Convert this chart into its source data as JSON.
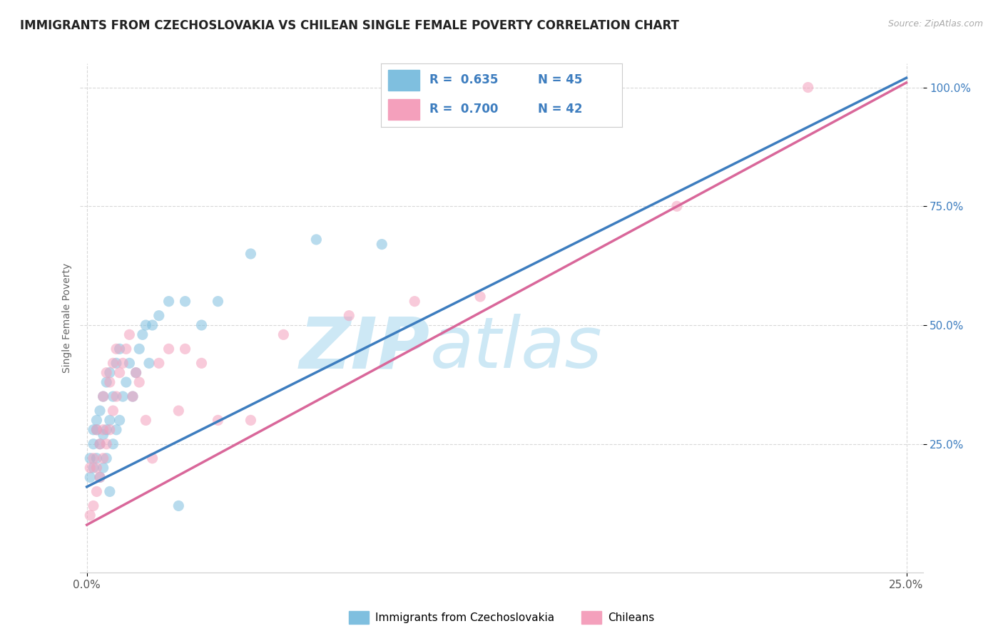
{
  "title": "IMMIGRANTS FROM CZECHOSLOVAKIA VS CHILEAN SINGLE FEMALE POVERTY CORRELATION CHART",
  "source_text": "Source: ZipAtlas.com",
  "ylabel": "Single Female Poverty",
  "xlim": [
    -0.002,
    0.255
  ],
  "ylim": [
    -0.02,
    1.05
  ],
  "xtick_labels": [
    "0.0%",
    "25.0%"
  ],
  "xtick_positions": [
    0.0,
    0.25
  ],
  "ytick_labels": [
    "100.0%",
    "75.0%",
    "50.0%",
    "25.0%"
  ],
  "ytick_positions": [
    1.0,
    0.75,
    0.5,
    0.25
  ],
  "blue_R": 0.635,
  "blue_N": 45,
  "pink_R": 0.7,
  "pink_N": 42,
  "blue_color": "#7fbfdf",
  "pink_color": "#f4a0bc",
  "blue_line_color": "#3d7dbf",
  "pink_line_color": "#d9679a",
  "watermark_zip": "ZIP",
  "watermark_atlas": "atlas",
  "watermark_color": "#cde8f5",
  "legend_label_blue": "Immigrants from Czechoslovakia",
  "legend_label_pink": "Chileans",
  "blue_scatter_x": [
    0.001,
    0.001,
    0.002,
    0.002,
    0.002,
    0.003,
    0.003,
    0.003,
    0.004,
    0.004,
    0.004,
    0.005,
    0.005,
    0.005,
    0.006,
    0.006,
    0.006,
    0.007,
    0.007,
    0.007,
    0.008,
    0.008,
    0.009,
    0.009,
    0.01,
    0.01,
    0.011,
    0.012,
    0.013,
    0.014,
    0.015,
    0.016,
    0.017,
    0.018,
    0.019,
    0.02,
    0.022,
    0.025,
    0.028,
    0.03,
    0.035,
    0.04,
    0.05,
    0.07,
    0.09
  ],
  "blue_scatter_y": [
    0.18,
    0.22,
    0.2,
    0.25,
    0.28,
    0.22,
    0.28,
    0.3,
    0.18,
    0.25,
    0.32,
    0.2,
    0.27,
    0.35,
    0.22,
    0.28,
    0.38,
    0.15,
    0.3,
    0.4,
    0.25,
    0.35,
    0.28,
    0.42,
    0.3,
    0.45,
    0.35,
    0.38,
    0.42,
    0.35,
    0.4,
    0.45,
    0.48,
    0.5,
    0.42,
    0.5,
    0.52,
    0.55,
    0.12,
    0.55,
    0.5,
    0.55,
    0.65,
    0.68,
    0.67
  ],
  "pink_scatter_x": [
    0.001,
    0.001,
    0.002,
    0.002,
    0.003,
    0.003,
    0.003,
    0.004,
    0.004,
    0.005,
    0.005,
    0.005,
    0.006,
    0.006,
    0.007,
    0.007,
    0.008,
    0.008,
    0.009,
    0.009,
    0.01,
    0.011,
    0.012,
    0.013,
    0.014,
    0.015,
    0.016,
    0.018,
    0.02,
    0.022,
    0.025,
    0.028,
    0.03,
    0.035,
    0.04,
    0.05,
    0.06,
    0.08,
    0.1,
    0.12,
    0.18,
    0.22
  ],
  "pink_scatter_y": [
    0.1,
    0.2,
    0.12,
    0.22,
    0.15,
    0.2,
    0.28,
    0.18,
    0.25,
    0.22,
    0.28,
    0.35,
    0.25,
    0.4,
    0.28,
    0.38,
    0.32,
    0.42,
    0.35,
    0.45,
    0.4,
    0.42,
    0.45,
    0.48,
    0.35,
    0.4,
    0.38,
    0.3,
    0.22,
    0.42,
    0.45,
    0.32,
    0.45,
    0.42,
    0.3,
    0.3,
    0.48,
    0.52,
    0.55,
    0.56,
    0.75,
    1.0
  ],
  "blue_line_x0": 0.0,
  "blue_line_y0": 0.16,
  "blue_line_x1": 0.25,
  "blue_line_y1": 1.02,
  "pink_line_x0": 0.0,
  "pink_line_y0": 0.08,
  "pink_line_x1": 0.25,
  "pink_line_y1": 1.01,
  "background_color": "#ffffff",
  "grid_color": "#d8d8d8",
  "title_fontsize": 12,
  "axis_label_fontsize": 10,
  "tick_fontsize": 11
}
